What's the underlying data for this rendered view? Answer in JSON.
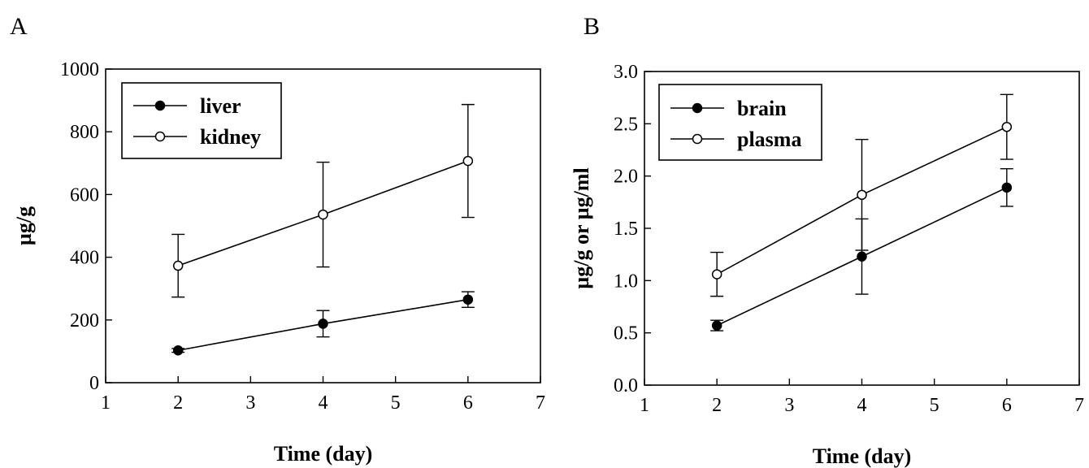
{
  "chart_data": [
    {
      "panel": "A",
      "type": "line",
      "xlabel": "Time (day)",
      "ylabel": "µg/g",
      "xlim": [
        1,
        7
      ],
      "ylim": [
        0,
        1000
      ],
      "xticks": [
        "1",
        "2",
        "3",
        "4",
        "5",
        "6",
        "7"
      ],
      "yticks": [
        "0",
        "200",
        "400",
        "600",
        "800",
        "1000"
      ],
      "legend_position": "top-left",
      "series": [
        {
          "name": "liver",
          "marker": "filled-circle",
          "x": [
            2,
            4,
            6
          ],
          "y": [
            103,
            188,
            265
          ],
          "err": [
            6,
            42,
            25
          ]
        },
        {
          "name": "kidney",
          "marker": "open-circle",
          "x": [
            2,
            4,
            6
          ],
          "y": [
            373,
            536,
            707
          ],
          "err": [
            100,
            167,
            180
          ]
        }
      ]
    },
    {
      "panel": "B",
      "type": "line",
      "xlabel": "Time (day)",
      "ylabel": "µg/g or µg/ml",
      "xlim": [
        1,
        7
      ],
      "ylim": [
        0,
        3
      ],
      "xticks": [
        "1",
        "2",
        "3",
        "4",
        "5",
        "6",
        "7"
      ],
      "yticks": [
        "0.0",
        "0.5",
        "1.0",
        "1.5",
        "2.0",
        "2.5",
        "3.0"
      ],
      "legend_position": "top-left",
      "series": [
        {
          "name": "brain",
          "marker": "filled-circle",
          "x": [
            2,
            4,
            6
          ],
          "y": [
            0.57,
            1.23,
            1.89
          ],
          "err": [
            0.05,
            0.36,
            0.18
          ]
        },
        {
          "name": "plasma",
          "marker": "open-circle",
          "x": [
            2,
            4,
            6
          ],
          "y": [
            1.06,
            1.82,
            2.47
          ],
          "err": [
            0.21,
            0.53,
            0.31
          ]
        }
      ]
    }
  ]
}
